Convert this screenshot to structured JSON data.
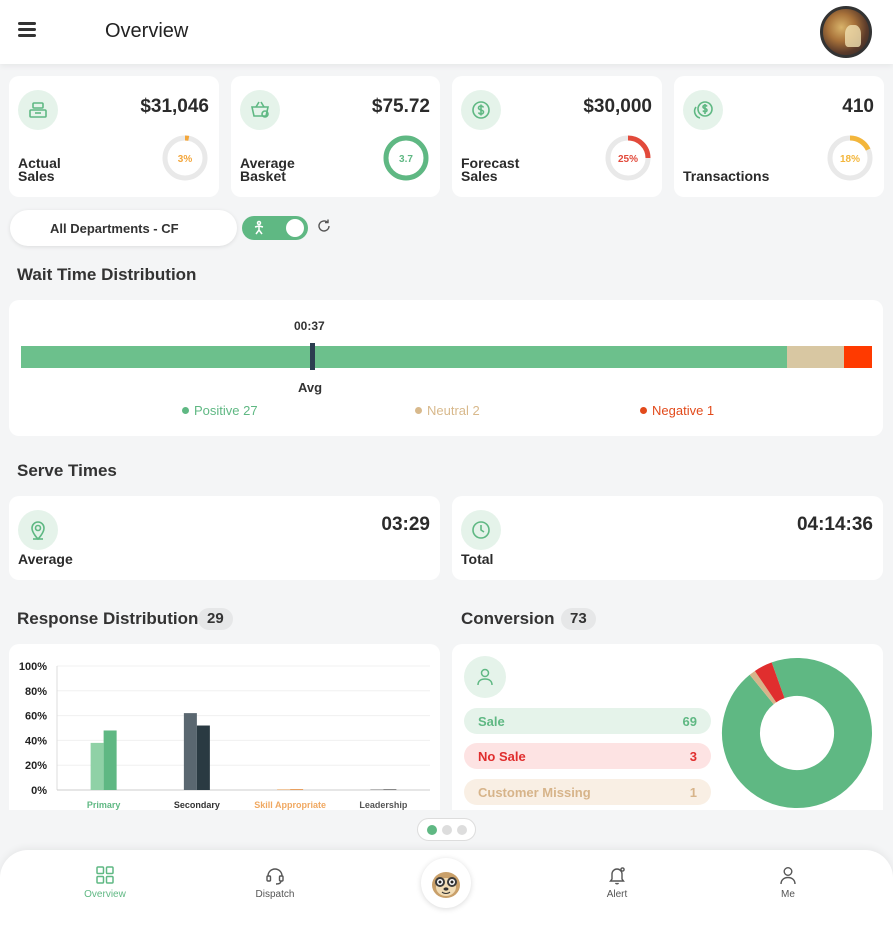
{
  "header": {
    "title": "Overview"
  },
  "kpis": [
    {
      "label": "Actual Sales",
      "value": "$31,046",
      "ring_text": "3%",
      "ring_fraction": 0.03,
      "ring_color": "#f3a63b",
      "icon": "register-icon"
    },
    {
      "label": "Average Basket",
      "value": "$75.72",
      "ring_text": "3.7",
      "ring_fraction": 1.0,
      "ring_color": "#5fb883",
      "icon": "basket-icon"
    },
    {
      "label": "Forecast Sales",
      "value": "$30,000",
      "ring_text": "25%",
      "ring_fraction": 0.25,
      "ring_color": "#e24a3b",
      "icon": "dollar-icon"
    },
    {
      "label": "Transactions",
      "value": "410",
      "ring_text": "18%",
      "ring_fraction": 0.18,
      "ring_color": "#f3b63b",
      "icon": "coins-icon"
    }
  ],
  "filters": {
    "department": "All Departments - CF",
    "toggle_on": true
  },
  "wait_time": {
    "title": "Wait Time Distribution",
    "avg_time": "00:37",
    "avg_label": "Avg",
    "avg_fraction": 0.34,
    "positive": {
      "label": "Positive 27",
      "count": 27,
      "color": "#5fb883"
    },
    "neutral": {
      "label": "Neutral 2",
      "count": 2,
      "color": "#d8b98c"
    },
    "negative": {
      "label": "Negative 1",
      "count": 1,
      "color": "#e24a1b"
    }
  },
  "serve_times": {
    "title": "Serve Times",
    "average": {
      "label": "Average",
      "value": "03:29"
    },
    "total": {
      "label": "Total",
      "value": "04:14:36"
    }
  },
  "response": {
    "title": "Response Distribution",
    "count": "29"
  },
  "conversion": {
    "title": "Conversion",
    "count": "73",
    "items": [
      {
        "label": "Sale",
        "value": "69",
        "count": 69,
        "color": "#5fb883",
        "bg": "#e5f3ea"
      },
      {
        "label": "No Sale",
        "value": "3",
        "count": 3,
        "color": "#e02e2e",
        "bg": "#fde3e3"
      },
      {
        "label": "Customer Missing",
        "value": "1",
        "count": 1,
        "color": "#d7b48a",
        "bg": "#f9efe4"
      }
    ]
  },
  "chart_data": {
    "type": "bar",
    "categories": [
      "Primary",
      "Secondary",
      "Skill Appropriate",
      "Leadership"
    ],
    "category_colors": [
      "#5fb883",
      "#333333",
      "#f0a861",
      "#555555"
    ],
    "series": [
      {
        "values": [
          38,
          62,
          0,
          0
        ],
        "colors": [
          "#8fd1a6",
          "#5a6770",
          "#f0c8a0",
          "#b8b8b8"
        ]
      },
      {
        "values": [
          48,
          52,
          0,
          0
        ],
        "colors": [
          "#5fb883",
          "#2a3a42",
          "#e8a060",
          "#888888"
        ]
      }
    ],
    "ylim": [
      0,
      100
    ],
    "yticks": [
      "100%",
      "80%",
      "60%",
      "40%",
      "20%",
      "0%"
    ]
  },
  "pager": {
    "pages": 3,
    "active": 0
  },
  "nav": [
    {
      "label": "Overview",
      "icon": "grid-icon",
      "active": true
    },
    {
      "label": "Dispatch",
      "icon": "headset-icon",
      "active": false
    },
    {
      "label": "Alert",
      "icon": "bell-icon",
      "active": false
    },
    {
      "label": "Me",
      "icon": "person-icon",
      "active": false
    }
  ]
}
